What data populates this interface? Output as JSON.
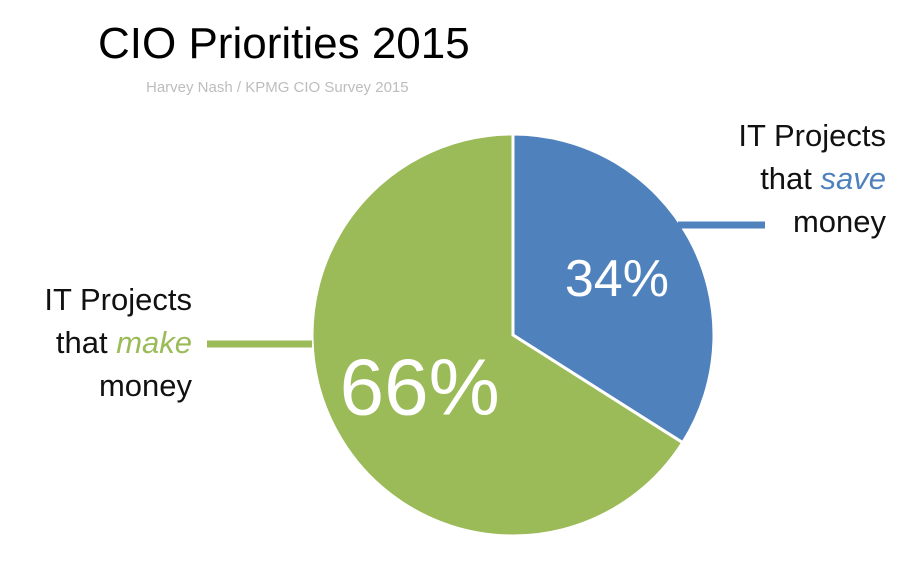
{
  "title": "CIO Priorities 2015",
  "subtitle": "Harvey Nash / KPMG CIO Survey 2015",
  "chart_data": {
    "type": "pie",
    "title": "CIO Priorities 2015",
    "subtitle": "Harvey Nash / KPMG CIO Survey 2015",
    "start_angle": "12 o'clock, clockwise",
    "slices": [
      {
        "value": 34,
        "display": "34%",
        "color": "#4f81bd",
        "label_pre": "IT Projects",
        "label_mid_pre": "that ",
        "label_emph": "save",
        "label_post": "money"
      },
      {
        "value": 66,
        "display": "66%",
        "color": "#9bbb59",
        "label_pre": "IT Projects",
        "label_mid_pre": "that ",
        "label_emph": "make",
        "label_post": "money"
      }
    ]
  }
}
